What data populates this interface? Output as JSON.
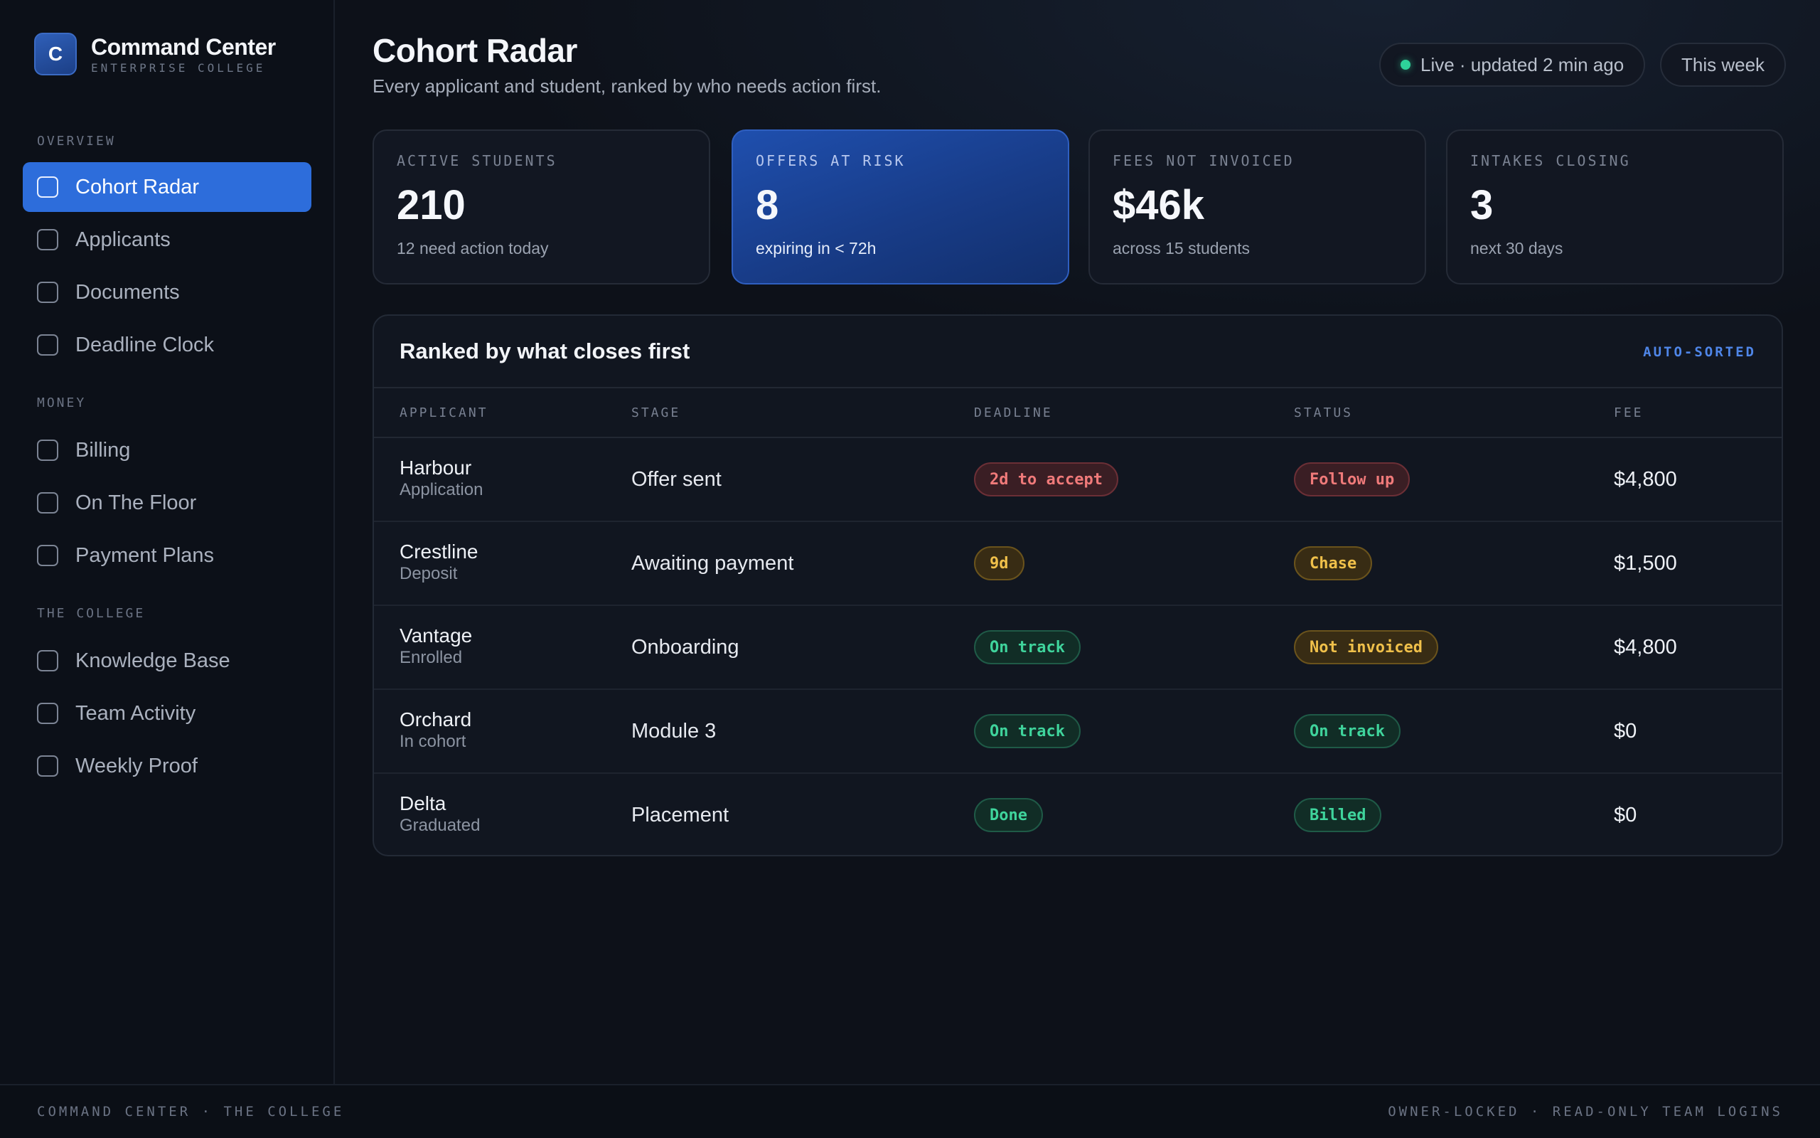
{
  "brand": {
    "logo_letter": "C",
    "title": "Command Center",
    "subtitle": "ENTERPRISE COLLEGE"
  },
  "sidebar": {
    "sections": [
      {
        "label": "OVERVIEW",
        "items": [
          {
            "label": "Cohort Radar",
            "active": true
          },
          {
            "label": "Applicants"
          },
          {
            "label": "Documents"
          },
          {
            "label": "Deadline Clock"
          }
        ]
      },
      {
        "label": "MONEY",
        "items": [
          {
            "label": "Billing"
          },
          {
            "label": "On The Floor"
          },
          {
            "label": "Payment Plans"
          }
        ]
      },
      {
        "label": "THE COLLEGE",
        "items": [
          {
            "label": "Knowledge Base"
          },
          {
            "label": "Team Activity"
          },
          {
            "label": "Weekly Proof"
          }
        ]
      }
    ]
  },
  "header": {
    "title": "Cohort Radar",
    "subtitle": "Every applicant and student, ranked by who needs action first.",
    "live_status": "Live · updated 2 min ago",
    "range": "This week"
  },
  "stats": [
    {
      "label": "ACTIVE STUDENTS",
      "value": "210",
      "note": "12 need action today"
    },
    {
      "label": "OFFERS AT RISK",
      "value": "8",
      "note": "expiring in < 72h"
    },
    {
      "label": "FEES NOT INVOICED",
      "value": "$46k",
      "note": "across 15 students"
    },
    {
      "label": "INTAKES CLOSING",
      "value": "3",
      "note": "next 30 days"
    }
  ],
  "table": {
    "title": "Ranked by what closes first",
    "tag": "AUTO-SORTED",
    "columns": [
      "APPLICANT",
      "STAGE",
      "DEADLINE",
      "STATUS",
      "FEE"
    ],
    "rows": [
      {
        "name": "Harbour",
        "sub": "Application",
        "stage": "Offer sent",
        "deadline": "2d to accept",
        "status": "Follow up",
        "fee": "$4,800"
      },
      {
        "name": "Crestline",
        "sub": "Deposit",
        "stage": "Awaiting payment",
        "deadline": "9d",
        "status": "Chase",
        "fee": "$1,500"
      },
      {
        "name": "Vantage",
        "sub": "Enrolled",
        "stage": "Onboarding",
        "deadline": "On track",
        "status": "Not invoiced",
        "fee": "$4,800"
      },
      {
        "name": "Orchard",
        "sub": "In cohort",
        "stage": "Module 3",
        "deadline": "On track",
        "status": "On track",
        "fee": "$0"
      },
      {
        "name": "Delta",
        "sub": "Graduated",
        "stage": "Placement",
        "deadline": "Done",
        "status": "Billed",
        "fee": "$0"
      }
    ]
  },
  "footer": {
    "left": "COMMAND CENTER · THE COLLEGE",
    "right": "OWNER-LOCKED · READ-ONLY TEAM LOGINS"
  },
  "colors": {
    "accent": "#2d6ddb",
    "danger": "#f07a7a",
    "warning": "#f0c04a",
    "success": "#3fd49c",
    "live": "#2ed39a"
  }
}
